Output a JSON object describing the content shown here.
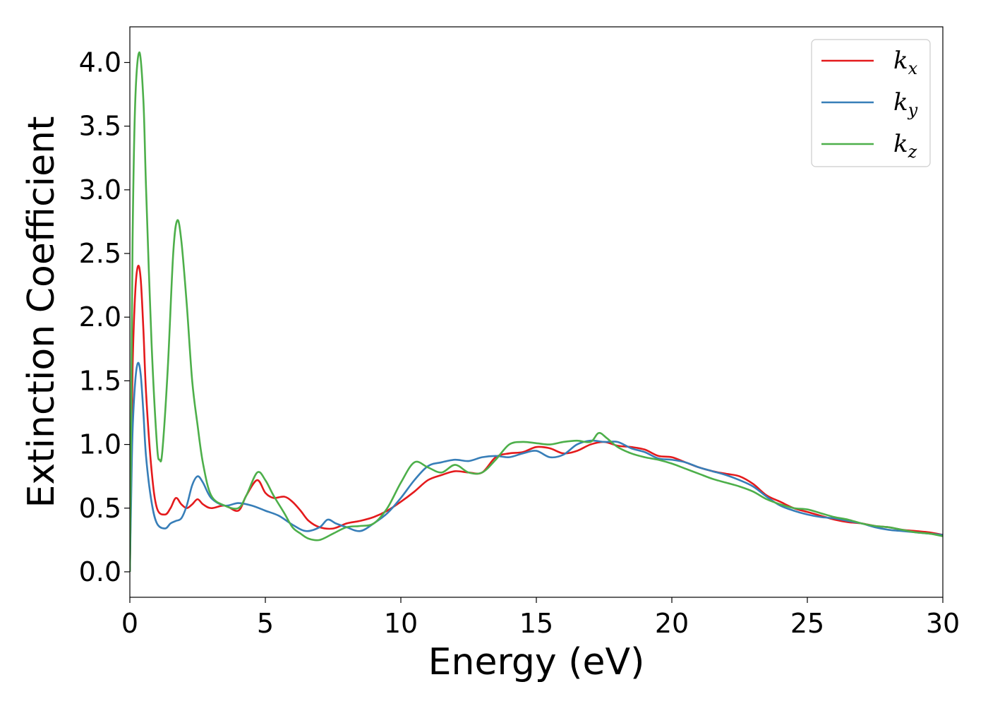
{
  "chart_data": {
    "type": "line",
    "title": "",
    "xlabel": "Energy (eV)",
    "ylabel": "Extinction Coefficient",
    "xlim": [
      0,
      30
    ],
    "ylim": [
      -0.2,
      4.28
    ],
    "xticks": [
      0,
      5,
      10,
      15,
      20,
      25,
      30
    ],
    "xtick_labels": [
      "0",
      "5",
      "10",
      "15",
      "20",
      "25",
      "30"
    ],
    "yticks": [
      0.0,
      0.5,
      1.0,
      1.5,
      2.0,
      2.5,
      3.0,
      3.5,
      4.0
    ],
    "ytick_labels": [
      "0.0",
      "0.5",
      "1.0",
      "1.5",
      "2.0",
      "2.5",
      "3.0",
      "3.5",
      "4.0"
    ],
    "grid": false,
    "legend_position": "top-right",
    "series": [
      {
        "name": "k_x",
        "label_base": "k",
        "label_sub": "x",
        "color": "#e41a1c",
        "points": [
          [
            0,
            0
          ],
          [
            0.05,
            0.8
          ],
          [
            0.1,
            1.6
          ],
          [
            0.2,
            2.2
          ],
          [
            0.3,
            2.4
          ],
          [
            0.4,
            2.3
          ],
          [
            0.5,
            1.9
          ],
          [
            0.6,
            1.4
          ],
          [
            0.8,
            0.8
          ],
          [
            1.0,
            0.5
          ],
          [
            1.3,
            0.45
          ],
          [
            1.5,
            0.5
          ],
          [
            1.7,
            0.58
          ],
          [
            1.9,
            0.53
          ],
          [
            2.1,
            0.5
          ],
          [
            2.3,
            0.53
          ],
          [
            2.5,
            0.57
          ],
          [
            2.7,
            0.53
          ],
          [
            3.0,
            0.5
          ],
          [
            3.5,
            0.52
          ],
          [
            4.0,
            0.48
          ],
          [
            4.3,
            0.6
          ],
          [
            4.7,
            0.72
          ],
          [
            5.0,
            0.62
          ],
          [
            5.3,
            0.58
          ],
          [
            5.7,
            0.59
          ],
          [
            6.0,
            0.55
          ],
          [
            6.3,
            0.48
          ],
          [
            6.6,
            0.4
          ],
          [
            7.0,
            0.35
          ],
          [
            7.5,
            0.34
          ],
          [
            8.0,
            0.38
          ],
          [
            8.5,
            0.4
          ],
          [
            9.0,
            0.43
          ],
          [
            9.5,
            0.48
          ],
          [
            10.0,
            0.55
          ],
          [
            10.5,
            0.63
          ],
          [
            11.0,
            0.72
          ],
          [
            11.5,
            0.76
          ],
          [
            12.0,
            0.79
          ],
          [
            12.5,
            0.78
          ],
          [
            13.0,
            0.78
          ],
          [
            13.5,
            0.9
          ],
          [
            14.0,
            0.93
          ],
          [
            14.5,
            0.94
          ],
          [
            15.0,
            0.98
          ],
          [
            15.5,
            0.97
          ],
          [
            16.0,
            0.93
          ],
          [
            16.5,
            0.95
          ],
          [
            17.0,
            1.0
          ],
          [
            17.5,
            1.02
          ],
          [
            18.0,
            0.99
          ],
          [
            18.5,
            0.98
          ],
          [
            19.0,
            0.96
          ],
          [
            19.5,
            0.91
          ],
          [
            20.0,
            0.9
          ],
          [
            20.5,
            0.86
          ],
          [
            21.0,
            0.82
          ],
          [
            21.5,
            0.79
          ],
          [
            22.0,
            0.77
          ],
          [
            22.5,
            0.75
          ],
          [
            23.0,
            0.69
          ],
          [
            23.5,
            0.6
          ],
          [
            24.0,
            0.55
          ],
          [
            24.5,
            0.5
          ],
          [
            25.0,
            0.47
          ],
          [
            25.5,
            0.44
          ],
          [
            26.0,
            0.41
          ],
          [
            26.5,
            0.39
          ],
          [
            27.0,
            0.38
          ],
          [
            27.5,
            0.36
          ],
          [
            28.0,
            0.35
          ],
          [
            28.5,
            0.33
          ],
          [
            29.0,
            0.32
          ],
          [
            29.5,
            0.31
          ],
          [
            30.0,
            0.29
          ]
        ]
      },
      {
        "name": "k_y",
        "label_base": "k",
        "label_sub": "y",
        "color": "#377eb8",
        "points": [
          [
            0,
            0
          ],
          [
            0.05,
            0.6
          ],
          [
            0.1,
            1.1
          ],
          [
            0.2,
            1.5
          ],
          [
            0.3,
            1.64
          ],
          [
            0.4,
            1.55
          ],
          [
            0.5,
            1.25
          ],
          [
            0.6,
            0.9
          ],
          [
            0.8,
            0.55
          ],
          [
            1.0,
            0.38
          ],
          [
            1.3,
            0.34
          ],
          [
            1.5,
            0.38
          ],
          [
            1.7,
            0.4
          ],
          [
            1.9,
            0.42
          ],
          [
            2.1,
            0.52
          ],
          [
            2.3,
            0.68
          ],
          [
            2.5,
            0.75
          ],
          [
            2.7,
            0.7
          ],
          [
            3.0,
            0.58
          ],
          [
            3.5,
            0.52
          ],
          [
            4.0,
            0.54
          ],
          [
            4.5,
            0.52
          ],
          [
            5.0,
            0.48
          ],
          [
            5.5,
            0.44
          ],
          [
            6.0,
            0.37
          ],
          [
            6.5,
            0.32
          ],
          [
            7.0,
            0.35
          ],
          [
            7.3,
            0.41
          ],
          [
            7.6,
            0.38
          ],
          [
            8.0,
            0.35
          ],
          [
            8.5,
            0.32
          ],
          [
            9.0,
            0.38
          ],
          [
            9.5,
            0.46
          ],
          [
            10.0,
            0.58
          ],
          [
            10.5,
            0.72
          ],
          [
            11.0,
            0.83
          ],
          [
            11.5,
            0.86
          ],
          [
            12.0,
            0.88
          ],
          [
            12.5,
            0.87
          ],
          [
            13.0,
            0.9
          ],
          [
            13.5,
            0.91
          ],
          [
            14.0,
            0.9
          ],
          [
            14.5,
            0.93
          ],
          [
            15.0,
            0.95
          ],
          [
            15.5,
            0.9
          ],
          [
            16.0,
            0.92
          ],
          [
            16.5,
            1.0
          ],
          [
            17.0,
            1.03
          ],
          [
            17.5,
            1.02
          ],
          [
            18.0,
            1.02
          ],
          [
            18.5,
            0.97
          ],
          [
            19.0,
            0.94
          ],
          [
            19.5,
            0.89
          ],
          [
            20.0,
            0.88
          ],
          [
            20.5,
            0.86
          ],
          [
            21.0,
            0.82
          ],
          [
            21.5,
            0.79
          ],
          [
            22.0,
            0.76
          ],
          [
            22.5,
            0.72
          ],
          [
            23.0,
            0.67
          ],
          [
            23.5,
            0.59
          ],
          [
            24.0,
            0.52
          ],
          [
            24.5,
            0.48
          ],
          [
            25.0,
            0.45
          ],
          [
            25.5,
            0.43
          ],
          [
            26.0,
            0.42
          ],
          [
            26.5,
            0.4
          ],
          [
            27.0,
            0.38
          ],
          [
            27.5,
            0.35
          ],
          [
            28.0,
            0.33
          ],
          [
            28.5,
            0.32
          ],
          [
            29.0,
            0.31
          ],
          [
            29.5,
            0.3
          ],
          [
            30.0,
            0.29
          ]
        ]
      },
      {
        "name": "k_z",
        "label_base": "k",
        "label_sub": "z",
        "color": "#4daf4a",
        "points": [
          [
            0,
            0
          ],
          [
            0.05,
            1.2
          ],
          [
            0.1,
            2.6
          ],
          [
            0.2,
            3.7
          ],
          [
            0.35,
            4.08
          ],
          [
            0.5,
            3.7
          ],
          [
            0.6,
            3.0
          ],
          [
            0.8,
            1.8
          ],
          [
            1.0,
            1.0
          ],
          [
            1.1,
            0.88
          ],
          [
            1.2,
            0.95
          ],
          [
            1.4,
            1.6
          ],
          [
            1.6,
            2.5
          ],
          [
            1.75,
            2.76
          ],
          [
            1.9,
            2.6
          ],
          [
            2.1,
            2.1
          ],
          [
            2.3,
            1.5
          ],
          [
            2.5,
            1.15
          ],
          [
            2.7,
            0.85
          ],
          [
            3.0,
            0.6
          ],
          [
            3.5,
            0.52
          ],
          [
            4.0,
            0.5
          ],
          [
            4.3,
            0.6
          ],
          [
            4.7,
            0.78
          ],
          [
            5.0,
            0.72
          ],
          [
            5.3,
            0.6
          ],
          [
            5.7,
            0.46
          ],
          [
            6.0,
            0.35
          ],
          [
            6.3,
            0.3
          ],
          [
            6.6,
            0.26
          ],
          [
            7.0,
            0.25
          ],
          [
            7.5,
            0.3
          ],
          [
            8.0,
            0.35
          ],
          [
            8.5,
            0.36
          ],
          [
            9.0,
            0.38
          ],
          [
            9.5,
            0.5
          ],
          [
            10.0,
            0.7
          ],
          [
            10.5,
            0.86
          ],
          [
            11.0,
            0.82
          ],
          [
            11.5,
            0.78
          ],
          [
            12.0,
            0.84
          ],
          [
            12.5,
            0.78
          ],
          [
            13.0,
            0.78
          ],
          [
            13.5,
            0.88
          ],
          [
            14.0,
            1.0
          ],
          [
            14.5,
            1.02
          ],
          [
            15.0,
            1.01
          ],
          [
            15.5,
            1.0
          ],
          [
            16.0,
            1.02
          ],
          [
            16.5,
            1.03
          ],
          [
            17.0,
            1.02
          ],
          [
            17.3,
            1.09
          ],
          [
            17.6,
            1.05
          ],
          [
            18.0,
            0.98
          ],
          [
            18.5,
            0.93
          ],
          [
            19.0,
            0.9
          ],
          [
            19.5,
            0.88
          ],
          [
            20.0,
            0.85
          ],
          [
            20.5,
            0.81
          ],
          [
            21.0,
            0.77
          ],
          [
            21.5,
            0.73
          ],
          [
            22.0,
            0.7
          ],
          [
            22.5,
            0.67
          ],
          [
            23.0,
            0.63
          ],
          [
            23.5,
            0.57
          ],
          [
            24.0,
            0.53
          ],
          [
            24.5,
            0.5
          ],
          [
            25.0,
            0.49
          ],
          [
            25.5,
            0.46
          ],
          [
            26.0,
            0.43
          ],
          [
            26.5,
            0.41
          ],
          [
            27.0,
            0.38
          ],
          [
            27.5,
            0.36
          ],
          [
            28.0,
            0.35
          ],
          [
            28.5,
            0.33
          ],
          [
            29.0,
            0.31
          ],
          [
            29.5,
            0.3
          ],
          [
            30.0,
            0.28
          ]
        ]
      }
    ]
  }
}
